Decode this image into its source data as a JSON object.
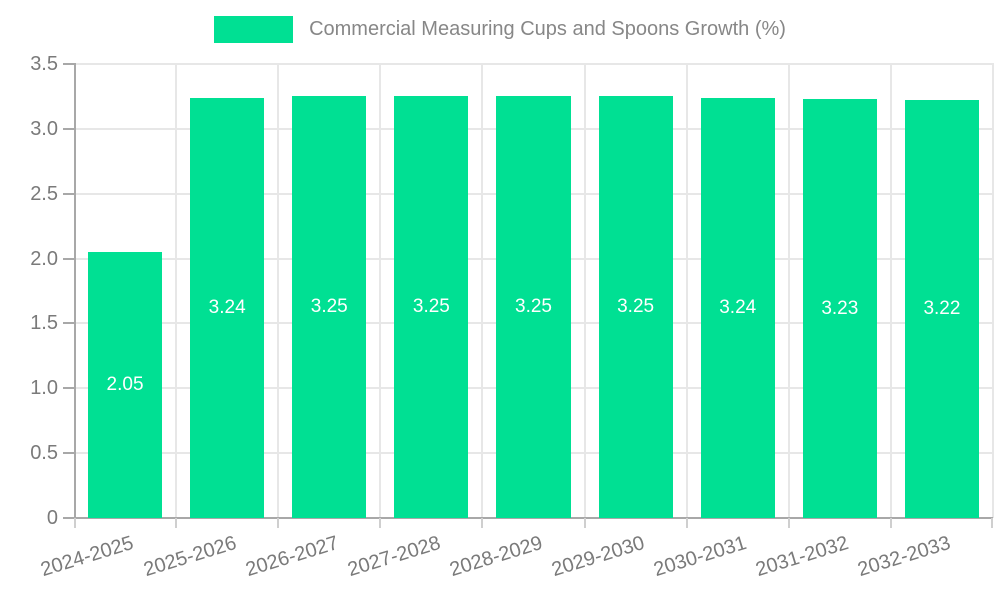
{
  "chart_data": {
    "type": "bar",
    "title": "Commercial Measuring Cups and Spoons Growth (%)",
    "categories": [
      "2024-2025",
      "2025-2026",
      "2026-2027",
      "2027-2028",
      "2028-2029",
      "2029-2030",
      "2030-2031",
      "2031-2032",
      "2032-2033"
    ],
    "values": [
      2.05,
      3.24,
      3.25,
      3.25,
      3.25,
      3.25,
      3.24,
      3.23,
      3.22
    ],
    "bar_labels": [
      "2.05",
      "3.24",
      "3.25",
      "3.25",
      "3.25",
      "3.25",
      "3.24",
      "3.23",
      "3.22"
    ],
    "xlabel": "",
    "ylabel": "",
    "ylim": [
      0,
      3.5
    ],
    "ytick_step": 0.5,
    "yticks": [
      "0",
      "0.5",
      "1.0",
      "1.5",
      "2.0",
      "2.5",
      "3.0",
      "3.5"
    ],
    "grid": true,
    "legend_position": "top-center",
    "bar_width_fraction": 0.725,
    "xlabel_rotation_deg": -17,
    "colors": {
      "bar": "#00E093",
      "bar_label": "#ffffff",
      "axis": "#a8a8a8",
      "grid": "#e7e7e7",
      "x_tick": "#cfcfcf",
      "tick_label": "#7a7a7a",
      "title": "#878787",
      "background": "#ffffff"
    }
  }
}
